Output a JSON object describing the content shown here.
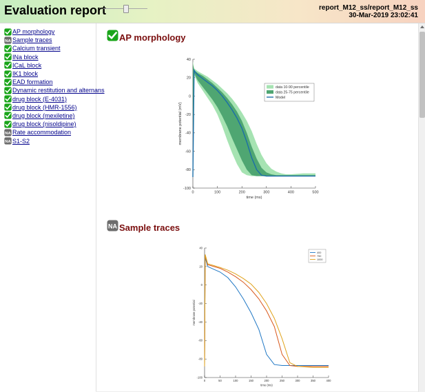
{
  "header": {
    "title": "Evaluation report",
    "report_path": "report_M12_ss/report_M12_ss",
    "timestamp": "30-Mar-2019 23:02:41",
    "slider": {
      "value_fraction": 0.52,
      "icon": "slider-thumb-icon"
    }
  },
  "colors": {
    "check_green": "#1aa51a",
    "na_grey": "#6d6d6d",
    "link": "#00008b",
    "section_title": "#7a0e0e",
    "band_outer": "#a6e3b2",
    "band_inner": "#4fa672",
    "model_line": "#1b6ea8"
  },
  "sidebar": {
    "items": [
      {
        "label": "AP morphology",
        "status": "pass",
        "icon": "check-icon"
      },
      {
        "label": "Sample traces",
        "status": "na",
        "icon": "na-icon"
      },
      {
        "label": "Calcium transient",
        "status": "pass",
        "icon": "check-icon"
      },
      {
        "label": "INa block",
        "status": "pass",
        "icon": "check-icon"
      },
      {
        "label": "ICaL block",
        "status": "pass",
        "icon": "check-icon"
      },
      {
        "label": "IK1 block",
        "status": "pass",
        "icon": "check-icon"
      },
      {
        "label": "EAD formation",
        "status": "pass",
        "icon": "check-icon"
      },
      {
        "label": "Dynamic restitution and alternans",
        "status": "pass",
        "icon": "check-icon"
      },
      {
        "label": "drug block (E-4031)",
        "status": "pass",
        "icon": "check-icon"
      },
      {
        "label": "drug block (HMR-1556)",
        "status": "pass",
        "icon": "check-icon"
      },
      {
        "label": "drug block (mexiletine)",
        "status": "pass",
        "icon": "check-icon"
      },
      {
        "label": "drug block (nisoldipine)",
        "status": "pass",
        "icon": "check-icon"
      },
      {
        "label": "Rate accommodation",
        "status": "na",
        "icon": "na-icon"
      },
      {
        "label": "S1-S2",
        "status": "na",
        "icon": "na-icon"
      }
    ]
  },
  "sections": [
    {
      "title": "AP morphology",
      "status": "pass",
      "icon": "check-icon"
    },
    {
      "title": "Sample traces",
      "status": "na",
      "icon": "na-icon"
    }
  ],
  "chart_data": [
    {
      "type": "area",
      "title": "",
      "xlabel": "time (ms)",
      "ylabel": "membrane potential (mV)",
      "xlim": [
        0,
        500
      ],
      "ylim": [
        -100,
        40
      ],
      "xticks": [
        0,
        100,
        200,
        300,
        400,
        500
      ],
      "yticks": [
        40,
        20,
        0,
        -20,
        -40,
        -60,
        -80,
        -100
      ],
      "grid": false,
      "legend_position": "top-right",
      "legend": [
        "data 10-90 percentile",
        "data 25-75 percentile",
        "Model"
      ],
      "x": [
        0,
        5,
        10,
        20,
        40,
        60,
        80,
        100,
        120,
        140,
        160,
        180,
        200,
        220,
        240,
        260,
        280,
        300,
        320,
        340,
        360,
        380,
        400,
        450,
        500
      ],
      "series": [
        {
          "name": "data 10-90 percentile",
          "kind": "band",
          "lower": [
            -88,
            24,
            20,
            14,
            6,
            -2,
            -10,
            -20,
            -33,
            -48,
            -62,
            -74,
            -83,
            -86,
            -87,
            -87,
            -87,
            -87,
            -87,
            -87,
            -87,
            -87,
            -87,
            -87,
            -87
          ],
          "upper": [
            38,
            30,
            29,
            27,
            24,
            21,
            17,
            13,
            8,
            3,
            -3,
            -10,
            -18,
            -27,
            -38,
            -52,
            -64,
            -73,
            -79,
            -82,
            -84,
            -85,
            -85,
            -84,
            -84
          ]
        },
        {
          "name": "data 25-75 percentile",
          "kind": "band",
          "lower": [
            -88,
            26,
            22,
            17,
            10,
            3,
            -4,
            -12,
            -22,
            -33,
            -46,
            -58,
            -70,
            -80,
            -86,
            -87,
            -87,
            -87,
            -87,
            -87,
            -87,
            -87,
            -87,
            -87,
            -87
          ],
          "upper": [
            34,
            29,
            27,
            25,
            22,
            18,
            14,
            9,
            4,
            -2,
            -9,
            -17,
            -27,
            -40,
            -55,
            -68,
            -78,
            -83,
            -85,
            -86,
            -86,
            -86,
            -86,
            -86,
            -86
          ]
        },
        {
          "name": "Model",
          "kind": "line",
          "values": [
            -88,
            28,
            26,
            23,
            19,
            15,
            11,
            6,
            0,
            -7,
            -15,
            -24,
            -35,
            -50,
            -67,
            -80,
            -86,
            -87,
            -87,
            -87,
            -87,
            -87,
            -87,
            -87,
            -87
          ]
        }
      ]
    },
    {
      "type": "line",
      "title": "",
      "xlabel": "time (ms)",
      "ylabel": "membrane potential",
      "xlim": [
        0,
        400
      ],
      "ylim": [
        -100,
        40
      ],
      "xticks": [
        0,
        50,
        100,
        150,
        200,
        250,
        300,
        350,
        400
      ],
      "yticks": [
        40,
        20,
        0,
        -20,
        -40,
        -60,
        -80,
        -100
      ],
      "grid": false,
      "legend_position": "top-right",
      "legend": [
        "400",
        "750",
        "1000"
      ],
      "x": [
        0,
        2,
        10,
        30,
        50,
        75,
        100,
        125,
        150,
        175,
        200,
        225,
        250,
        275,
        300,
        350,
        400
      ],
      "series": [
        {
          "name": "400",
          "color": "#1f77c4",
          "values": [
            -88,
            30,
            20,
            17,
            14,
            8,
            -2,
            -15,
            -30,
            -48,
            -75,
            -86,
            -87,
            -87,
            -87,
            -87,
            -87
          ]
        },
        {
          "name": "750",
          "color": "#d9581b",
          "values": [
            -88,
            32,
            22,
            20,
            18,
            14,
            9,
            3,
            -5,
            -15,
            -28,
            -45,
            -75,
            -87,
            -88,
            -88,
            -88
          ]
        },
        {
          "name": "1000",
          "color": "#e0a21a",
          "values": [
            -88,
            33,
            23,
            21,
            19,
            16,
            12,
            7,
            1,
            -8,
            -20,
            -36,
            -58,
            -84,
            -88,
            -89,
            -89
          ]
        }
      ]
    }
  ]
}
